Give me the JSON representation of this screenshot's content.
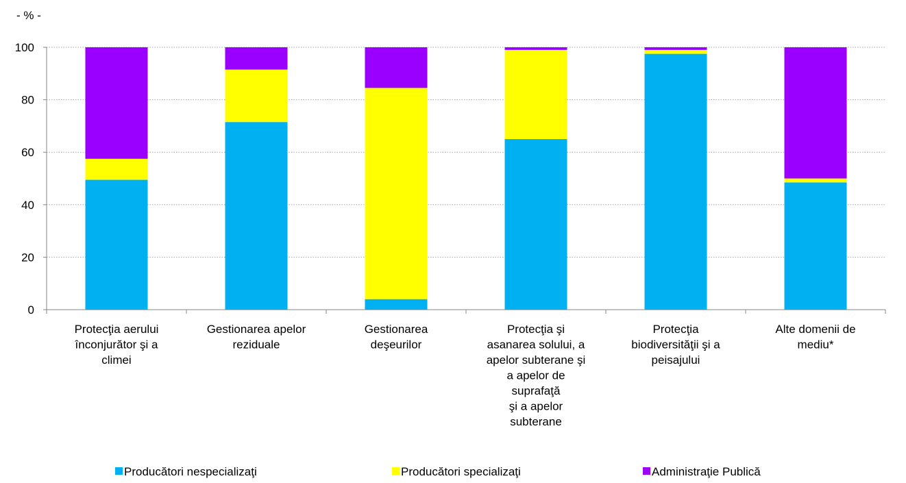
{
  "chart_data": {
    "type": "stacked_bar",
    "y_unit_label": "- % -",
    "categories": [
      [
        "Protecţia aerului",
        "înconjurător şi a",
        "climei"
      ],
      [
        "Gestionarea apelor",
        "reziduale"
      ],
      [
        "Gestionarea",
        "deşeurilor"
      ],
      [
        "Protecţia şi",
        "asanarea solului, a",
        "apelor subterane şi",
        "a apelor de",
        "suprafaţă",
        "şi a apelor",
        "subterane"
      ],
      [
        "Protecţia",
        "biodiversităţii şi a",
        "peisajului"
      ],
      [
        "Alte domenii de",
        "mediu*"
      ]
    ],
    "series": [
      {
        "name": "Producători nespecializaţi",
        "color": "#00b0f0",
        "values": [
          49.5,
          71.5,
          4,
          65,
          97.5,
          48.5
        ]
      },
      {
        "name": "Producători specializaţi",
        "color": "#ffff00",
        "values": [
          8,
          20,
          80.5,
          34,
          1.5,
          1.5
        ]
      },
      {
        "name": "Administraţie Publică",
        "color": "#9900ff",
        "values": [
          42.5,
          8.5,
          15.5,
          1,
          1,
          50
        ]
      }
    ],
    "ylim": [
      0,
      100
    ],
    "yticks": [
      0,
      20,
      40,
      60,
      80,
      100
    ],
    "grid": true,
    "legend": "bottom"
  }
}
